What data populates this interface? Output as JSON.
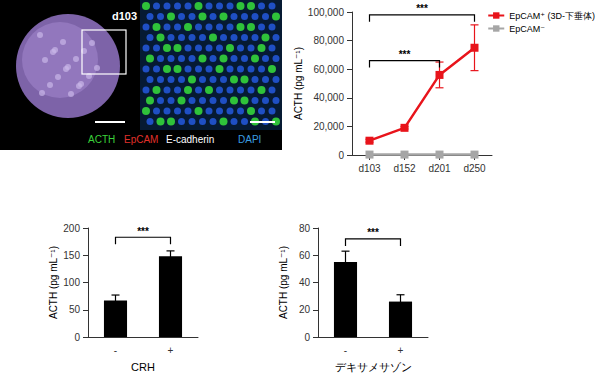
{
  "image_panel": {
    "label": "d103",
    "channels": [
      {
        "text": "ACTH",
        "color": "#3ad13a"
      },
      {
        "text": "EpCAM",
        "color": "#e0302a"
      },
      {
        "text": "E-cadherin",
        "color": "#ffffff"
      },
      {
        "text": "DAPI",
        "color": "#3b9de0"
      }
    ]
  },
  "chart_data": [
    {
      "type": "line",
      "categories": [
        "d103",
        "d152",
        "d201",
        "d250"
      ],
      "y_label": "ACTH (pg mL⁻¹)",
      "ylim": [
        0,
        100000
      ],
      "yticks": [
        0,
        {
          "value": 20000,
          "label": "20,000"
        },
        {
          "value": 40000,
          "label": "40,000"
        },
        {
          "value": 60000,
          "label": "60,000"
        },
        {
          "value": 80000,
          "label": "80,000"
        },
        {
          "value": 100000,
          "label": "100,000"
        }
      ],
      "grid": false,
      "legend": "top-right",
      "series": [
        {
          "name": "EpCAM⁺ (3D-下垂体)",
          "color": "#e8141b",
          "marker": "square",
          "values": [
            10000,
            19000,
            56000,
            75000
          ],
          "errors": [
            1000,
            800,
            9000,
            16000
          ]
        },
        {
          "name": "EpCAM⁻",
          "color": "#a6a6a6",
          "marker": "square",
          "values": [
            300,
            300,
            300,
            300
          ]
        }
      ],
      "annotations": [
        {
          "from": "d103",
          "to": "d201",
          "text": "***",
          "y": 66000
        },
        {
          "from": "d103",
          "to": "d250",
          "text": "***",
          "y": 98000
        }
      ]
    },
    {
      "type": "bar",
      "categories": [
        "-",
        "+"
      ],
      "x_label": "CRH",
      "y_label": "ACTH (pg mL⁻¹)",
      "values": [
        67,
        148
      ],
      "errors": [
        10,
        10
      ],
      "color": "#000000",
      "ylim": [
        0,
        200
      ],
      "yticks": [
        0,
        50,
        100,
        150,
        200
      ],
      "grid": false,
      "annotations": [
        {
          "from": "-",
          "to": "+",
          "text": "***",
          "y": 183
        }
      ]
    },
    {
      "type": "bar",
      "categories": [
        "-",
        "+"
      ],
      "x_label": "デキサメサゾン",
      "y_label": "ACTH (pg mL⁻¹)",
      "values": [
        55,
        26
      ],
      "errors": [
        8,
        5
      ],
      "color": "#000000",
      "ylim": [
        0,
        80
      ],
      "yticks": [
        0,
        20,
        40,
        60,
        80
      ],
      "grid": false,
      "annotations": [
        {
          "from": "-",
          "to": "+",
          "text": "***",
          "y": 72
        }
      ]
    }
  ]
}
